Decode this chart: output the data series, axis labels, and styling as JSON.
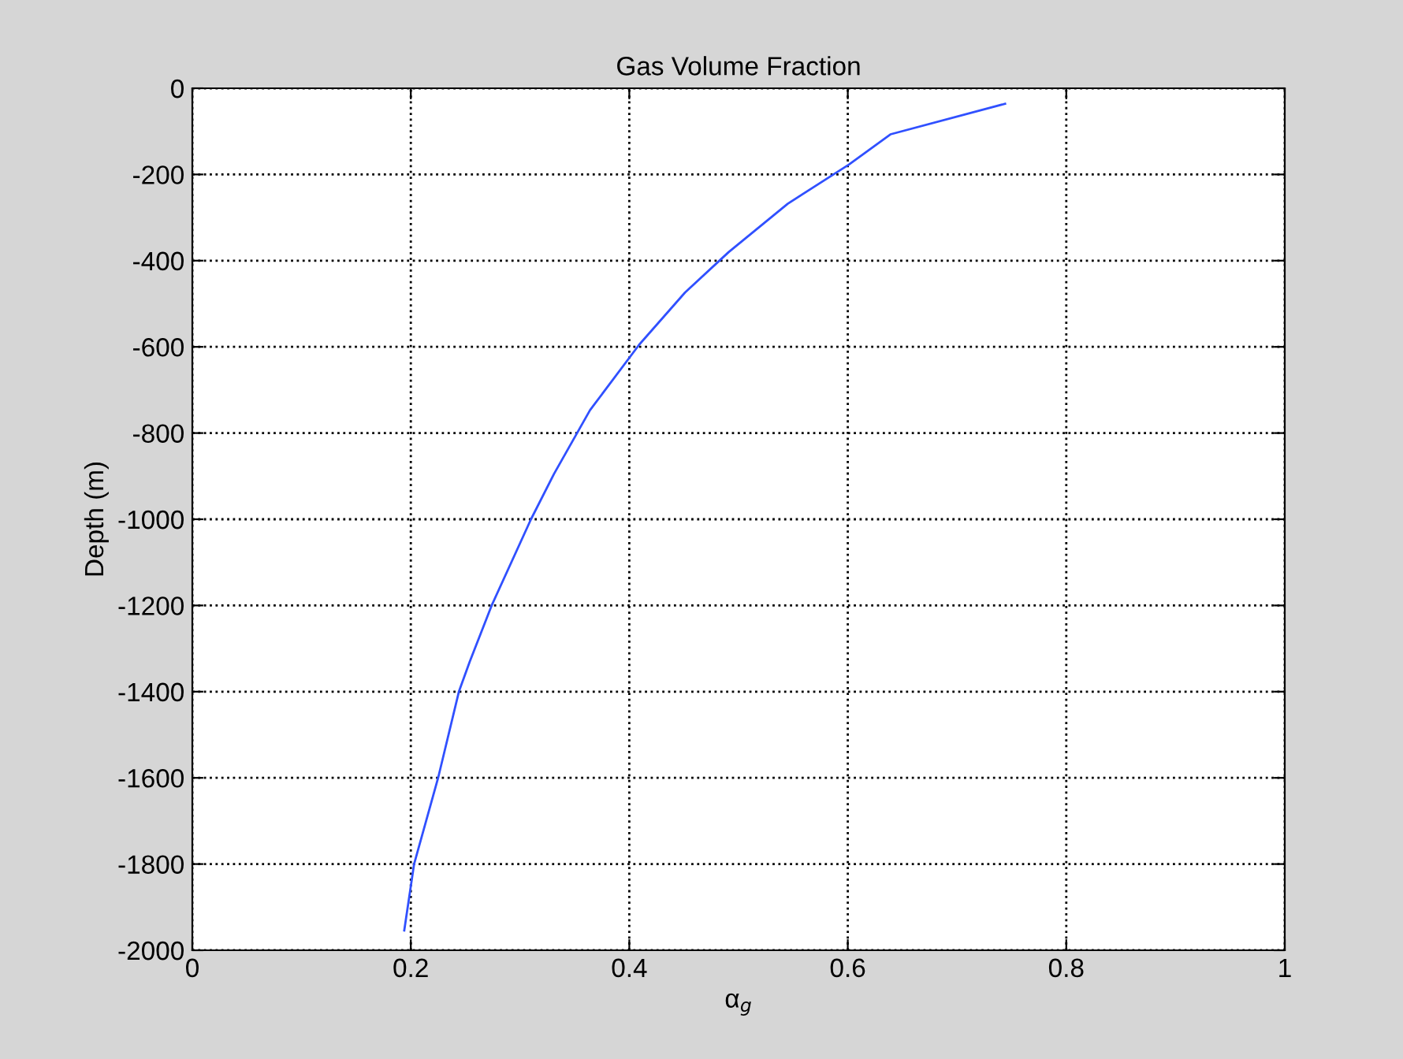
{
  "chart_data": {
    "type": "line",
    "title": "Gas Volume Fraction",
    "xlabel": "α$_{g}$",
    "ylabel": "Depth (m)",
    "series": [
      {
        "color": "#3050ff",
        "x": [
          0.744,
          0.639,
          0.601,
          0.545,
          0.491,
          0.451,
          0.409,
          0.364,
          0.331,
          0.31,
          0.274,
          0.254,
          0.244,
          0.225,
          0.203,
          0.194
        ],
        "values": [
          -36,
          -107,
          -177,
          -268,
          -380,
          -474,
          -595,
          -747,
          -895,
          -1000,
          -1200,
          -1330,
          -1400,
          -1600,
          -1800,
          -1954
        ]
      }
    ],
    "xlim": [
      0,
      1
    ],
    "xticks": [
      0,
      0.2,
      0.4,
      0.6,
      0.8,
      1
    ],
    "ylim": [
      -2000,
      0
    ],
    "yticks": [
      -2000,
      -1800,
      -1600,
      -1400,
      -1200,
      -1000,
      -800,
      -600,
      -400,
      -200,
      0
    ],
    "grid": true,
    "line_style": "solid",
    "marker": "none"
  }
}
